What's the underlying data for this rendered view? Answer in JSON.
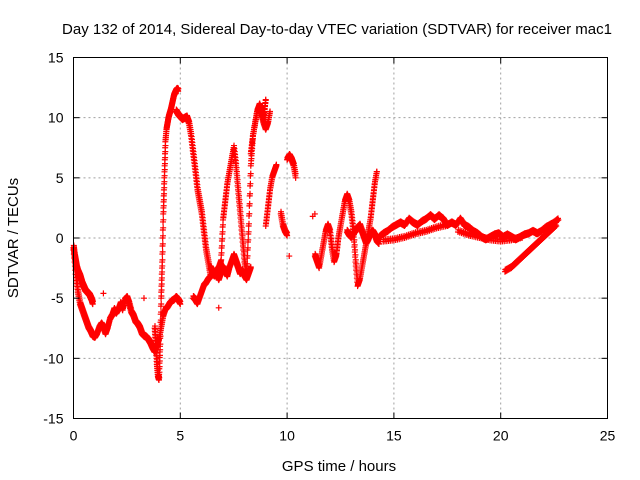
{
  "chart_data": {
    "type": "scatter",
    "title": "Day 132 of 2014, Sidereal Day-to-day VTEC variation (SDTVAR) for receiver mac1",
    "xlabel": "GPS time / hours",
    "ylabel": "SDTVAR / TECUs",
    "xlim": [
      0,
      25
    ],
    "ylim": [
      -15,
      15
    ],
    "xticks": [
      "0",
      "5",
      "10",
      "15",
      "20",
      "25"
    ],
    "yticks": [
      "-15",
      "-10",
      "-5",
      "0",
      "5",
      "10",
      "15"
    ],
    "grid": true,
    "marker": "plus",
    "color": "#ff0000",
    "series": [
      {
        "name": "SDTVAR",
        "segments": [
          {
            "x": [
              0.0,
              0.1,
              0.2,
              0.3,
              0.4,
              0.5,
              0.6,
              0.7,
              0.8,
              0.9,
              1.0,
              1.1,
              1.2,
              1.3,
              1.4,
              1.5,
              1.6,
              1.7,
              1.8,
              1.9,
              2.0,
              2.1,
              2.2,
              2.3,
              2.4,
              2.5,
              2.6,
              2.7,
              2.8,
              2.9,
              3.0,
              3.1,
              3.2,
              3.3,
              3.4,
              3.5,
              3.6,
              3.7,
              3.8,
              3.9,
              4.0,
              4.1,
              4.2,
              4.3,
              4.4,
              4.5,
              4.6,
              4.7,
              4.8,
              4.9,
              5.0
            ],
            "y": [
              -1.0,
              -3.0,
              -4.5,
              -5.5,
              -6.0,
              -6.5,
              -7.0,
              -7.5,
              -7.8,
              -8.2,
              -8.3,
              -8.0,
              -7.5,
              -7.2,
              -7.5,
              -8.0,
              -7.5,
              -6.8,
              -6.5,
              -6.0,
              -6.3,
              -6.0,
              -5.5,
              -6.0,
              -5.2,
              -5.0,
              -5.5,
              -6.2,
              -6.5,
              -7.0,
              -7.2,
              -7.5,
              -8.0,
              -8.2,
              -8.3,
              -8.5,
              -8.8,
              -9.2,
              -9.5,
              -9.0,
              -8.5,
              -7.5,
              -6.5,
              -6.0,
              -5.8,
              -5.5,
              -5.3,
              -5.2,
              -5.0,
              -5.2,
              -5.5
            ]
          },
          {
            "x": [
              0.0,
              0.05,
              0.1,
              0.15,
              0.2,
              0.25,
              0.3,
              0.35,
              0.4,
              0.45,
              0.5,
              0.55,
              0.6,
              0.65,
              0.7,
              0.75,
              0.8,
              0.85,
              0.9
            ],
            "y": [
              -0.8,
              -1.5,
              -2.0,
              -2.5,
              -2.8,
              -3.0,
              -3.2,
              -3.5,
              -3.8,
              -4.0,
              -4.2,
              -4.4,
              -4.5,
              -4.6,
              -4.7,
              -4.8,
              -5.0,
              -5.2,
              -5.5
            ]
          },
          {
            "x": [
              3.8,
              3.85,
              3.9,
              3.95,
              4.0,
              4.05,
              4.1,
              4.15,
              4.2,
              4.25,
              4.3,
              4.35,
              4.4,
              4.45,
              4.5,
              4.55,
              4.6,
              4.65,
              4.7,
              4.75,
              4.8,
              4.85,
              4.9
            ],
            "y": [
              -7.5,
              -9.0,
              -10.5,
              -11.5,
              -11.8,
              -9.0,
              -5.0,
              -2.0,
              2.0,
              5.0,
              8.0,
              9.0,
              9.5,
              10.0,
              10.3,
              10.6,
              11.0,
              11.4,
              11.8,
              12.0,
              12.2,
              12.3,
              12.2
            ]
          },
          {
            "x": [
              4.8,
              4.9,
              5.0,
              5.1,
              5.2,
              5.3,
              5.4,
              5.5,
              5.6,
              5.7,
              5.8,
              5.9,
              6.0,
              6.1,
              6.2,
              6.3,
              6.4
            ],
            "y": [
              10.5,
              10.2,
              10.0,
              9.8,
              9.9,
              10.0,
              9.5,
              8.5,
              7.0,
              5.5,
              4.0,
              3.0,
              2.0,
              0.5,
              -1.0,
              -2.0,
              -3.0
            ]
          },
          {
            "x": [
              5.6,
              5.7,
              5.8,
              5.9,
              6.0,
              6.1,
              6.2,
              6.3,
              6.4,
              6.5
            ],
            "y": [
              -5.0,
              -5.2,
              -5.5,
              -5.0,
              -4.5,
              -4.0,
              -3.8,
              -3.5,
              -3.3,
              -3.0
            ]
          },
          {
            "x": [
              6.4,
              6.5,
              6.6,
              6.7,
              6.8,
              6.9,
              7.0,
              7.1,
              7.2,
              7.3,
              7.4,
              7.5,
              7.6,
              7.7,
              7.8,
              7.9,
              8.0,
              8.1,
              8.2,
              8.3,
              8.4,
              8.5,
              8.6,
              8.7,
              8.8,
              8.9,
              9.0
            ],
            "y": [
              -2.5,
              -2.8,
              -3.0,
              -2.8,
              -2.5,
              -2.0,
              1.5,
              3.0,
              4.5,
              5.5,
              6.5,
              7.5,
              6.0,
              4.0,
              2.0,
              0.0,
              -2.0,
              -3.0,
              1.0,
              6.0,
              8.5,
              9.5,
              10.5,
              11.0,
              10.5,
              10.0,
              11.5
            ]
          },
          {
            "x": [
              6.5,
              6.6,
              6.7,
              6.8,
              6.9,
              7.0,
              7.1,
              7.2,
              7.3,
              7.4,
              7.5,
              7.6,
              7.7,
              7.8,
              7.9,
              8.0,
              8.1,
              8.2,
              8.3
            ],
            "y": [
              -3.0,
              -3.2,
              -3.0,
              -3.5,
              -3.0,
              -2.5,
              -2.8,
              -3.2,
              -2.5,
              -2.0,
              -1.5,
              -2.0,
              -2.5,
              -3.0,
              -2.8,
              -3.2,
              -3.5,
              -3.0,
              -2.5
            ]
          },
          {
            "x": [
              8.3,
              8.4,
              8.5,
              8.6,
              8.7,
              8.8,
              8.9,
              9.0,
              9.1,
              9.2
            ],
            "y": [
              7.0,
              8.5,
              9.5,
              10.5,
              10.8,
              10.2,
              9.5,
              9.0,
              9.5,
              10.5
            ]
          },
          {
            "x": [
              9.0,
              9.1,
              9.2,
              9.3,
              9.4,
              9.5
            ],
            "y": [
              1.0,
              2.5,
              4.0,
              5.0,
              5.5,
              6.0
            ]
          },
          {
            "x": [
              9.7,
              9.8,
              9.9,
              10.0
            ],
            "y": [
              2.0,
              1.0,
              0.5,
              0.2
            ]
          },
          {
            "x": [
              10.0,
              10.1,
              10.2,
              10.3,
              10.4
            ],
            "y": [
              6.5,
              6.8,
              6.5,
              6.0,
              5.0
            ]
          },
          {
            "x": [
              11.3,
              11.4,
              11.5,
              11.6,
              11.7,
              11.8,
              11.9,
              12.0,
              12.1,
              12.2,
              12.3,
              12.4,
              12.5,
              12.6,
              12.7,
              12.8,
              12.9,
              13.0,
              13.1,
              13.2,
              13.3,
              13.4,
              13.5,
              13.6,
              13.7,
              13.8,
              13.9,
              14.0,
              14.1,
              14.2
            ],
            "y": [
              -1.5,
              -2.0,
              -2.5,
              -1.5,
              -0.5,
              0.5,
              1.0,
              0.5,
              -1.0,
              -2.0,
              -1.5,
              0.0,
              1.0,
              2.0,
              3.0,
              3.5,
              3.0,
              2.0,
              0.5,
              -2.0,
              -4.0,
              -3.5,
              -2.5,
              -1.5,
              -0.5,
              0.5,
              1.5,
              3.0,
              4.5,
              5.5
            ]
          },
          {
            "x": [
              12.8,
              12.9,
              13.0,
              13.1,
              13.2,
              13.3,
              13.4,
              13.5,
              13.6,
              13.7,
              13.8,
              13.9,
              14.0,
              14.1,
              14.2,
              14.3
            ],
            "y": [
              0.5,
              0.2,
              0.0,
              0.3,
              0.5,
              0.8,
              1.0,
              0.5,
              0.0,
              -0.5,
              -0.2,
              0.3,
              0.5,
              0.2,
              -0.3,
              -0.5
            ]
          },
          {
            "x": [
              14.3,
              14.5,
              14.7,
              14.9,
              15.1,
              15.3,
              15.5,
              15.7,
              15.9,
              16.1,
              16.3,
              16.5,
              16.7,
              16.9,
              17.1,
              17.3,
              17.5,
              17.7,
              17.9,
              18.1,
              18.3,
              18.5,
              18.7,
              18.9,
              19.1,
              19.3,
              19.5,
              19.7,
              19.9,
              20.1,
              20.3,
              20.5,
              20.7,
              20.9,
              21.1,
              21.3,
              21.5,
              21.7,
              21.9,
              22.1,
              22.3,
              22.5,
              22.7
            ],
            "y": [
              0.0,
              0.3,
              0.5,
              0.8,
              1.0,
              1.2,
              1.0,
              1.5,
              1.2,
              1.0,
              1.3,
              1.5,
              1.8,
              1.5,
              1.8,
              1.5,
              1.0,
              1.2,
              1.0,
              1.5,
              1.0,
              0.8,
              0.5,
              0.3,
              0.0,
              -0.2,
              0.0,
              0.2,
              0.3,
              0.0,
              0.2,
              0.0,
              -0.2,
              0.0,
              0.2,
              0.3,
              0.5,
              0.3,
              0.5,
              0.8,
              1.0,
              1.2,
              1.5
            ]
          },
          {
            "x": [
              14.5,
              15.0,
              15.5,
              16.0,
              16.5,
              17.0,
              17.5
            ],
            "y": [
              -0.3,
              -0.2,
              0.0,
              0.3,
              0.5,
              0.8,
              1.0
            ]
          },
          {
            "x": [
              18.0,
              18.5,
              19.0,
              19.5,
              20.0,
              20.5,
              21.0
            ],
            "y": [
              0.5,
              0.2,
              0.0,
              -0.2,
              -0.3,
              -0.2,
              0.0
            ]
          },
          {
            "x": [
              20.2,
              20.5,
              20.8,
              21.1,
              21.4,
              21.7,
              22.0,
              22.3,
              22.6
            ],
            "y": [
              -2.8,
              -2.5,
              -2.0,
              -1.5,
              -1.0,
              -0.5,
              0.0,
              0.5,
              1.0
            ]
          }
        ],
        "isolated": [
          {
            "x": 1.4,
            "y": -4.6
          },
          {
            "x": 3.3,
            "y": -5.0
          },
          {
            "x": 6.8,
            "y": -5.8
          },
          {
            "x": 10.1,
            "y": -1.5
          },
          {
            "x": 11.3,
            "y": 2.0
          },
          {
            "x": 11.2,
            "y": 1.8
          }
        ]
      }
    ]
  }
}
